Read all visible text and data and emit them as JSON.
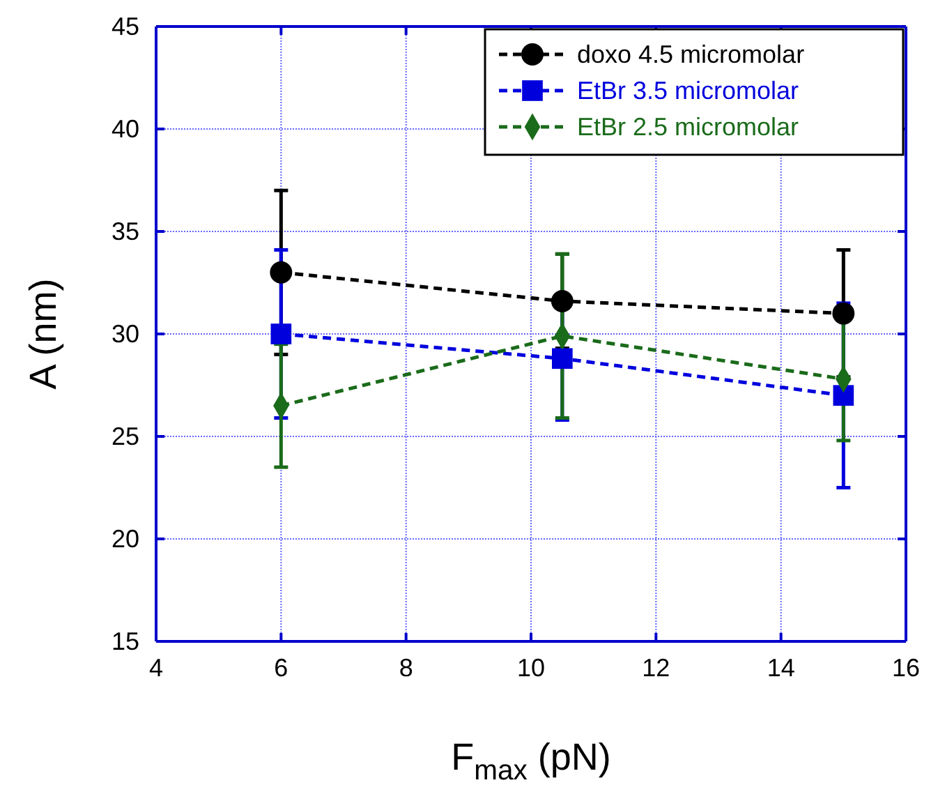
{
  "chart_data": {
    "type": "line",
    "xlabel": "F$_{max}$ (pN)",
    "ylabel": "A (nm)",
    "xlim": [
      4,
      16
    ],
    "ylim": [
      15,
      45
    ],
    "xticks": [
      4,
      6,
      8,
      10,
      12,
      14,
      16
    ],
    "yticks": [
      15,
      20,
      25,
      30,
      35,
      40,
      45
    ],
    "grid": true,
    "legend": "top right",
    "line_style": "dashed",
    "x": [
      6,
      10.5,
      15
    ],
    "series": [
      {
        "name": "doxo 4.5 micromolar",
        "color": "#000000",
        "marker": "circle",
        "values": [
          33,
          31.6,
          31
        ],
        "errors": [
          4,
          2.3,
          3.1
        ]
      },
      {
        "name": "EtBr 3.5 micromolar",
        "color": "#0000dd",
        "marker": "square",
        "values": [
          30,
          28.8,
          27
        ],
        "errors": [
          4.1,
          3,
          4.5
        ]
      },
      {
        "name": "EtBr 2.5 micromolar",
        "color": "#1a6b1a",
        "marker": "diamond",
        "values": [
          26.5,
          29.9,
          27.8
        ],
        "errors": [
          3,
          4,
          3
        ]
      }
    ]
  }
}
